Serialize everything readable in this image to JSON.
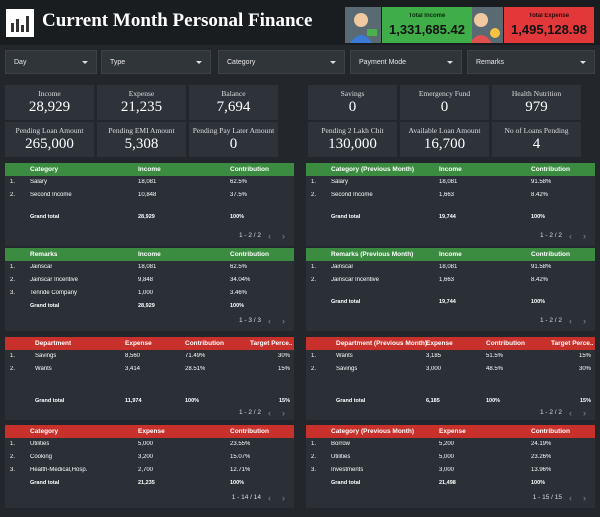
{
  "header": {
    "title": "Current Month Personal Finance",
    "kpis": [
      {
        "label": "Total Income",
        "value": "1,331,685.42",
        "color": "#3fae49"
      },
      {
        "label": "Total Expense",
        "value": "1,495,128.98",
        "color": "#e2383a"
      }
    ]
  },
  "filters": [
    "Day",
    "Type",
    "Category",
    "Payment Mode",
    "Remarks"
  ],
  "cards": [
    {
      "label": "Income",
      "value": "28,929"
    },
    {
      "label": "Expense",
      "value": "21,235"
    },
    {
      "label": "Balance",
      "value": "7,694"
    },
    {
      "label": "Savings",
      "value": "0"
    },
    {
      "label": "Emergency Fund",
      "value": "0"
    },
    {
      "label": "Health Nutrition",
      "value": "979"
    },
    {
      "label": "Pending Loan Amount",
      "value": "265,000"
    },
    {
      "label": "Pending EMI Amount",
      "value": "5,308"
    },
    {
      "label": "Pending Pay Later Amount",
      "value": "0"
    },
    {
      "label": "Pending 2 Lakh Chit",
      "value": "130,000"
    },
    {
      "label": "Available Loan Amount",
      "value": "16,700"
    },
    {
      "label": "No of Loans Pending",
      "value": "4"
    }
  ],
  "tables": [
    {
      "header_color": "#3b8c40",
      "columns": [
        "Category",
        "Income",
        "Contribution"
      ],
      "rows": [
        {
          "num": "1.",
          "cells": [
            "Salary",
            "18,081",
            "62.5%"
          ]
        },
        {
          "num": "2.",
          "cells": [
            "Second Income",
            "10,848",
            "37.5%"
          ]
        }
      ],
      "total": [
        "Grand total",
        "28,929",
        "100%"
      ],
      "pagination": "1 - 2 / 2"
    },
    {
      "header_color": "#3b8c40",
      "columns": [
        "Category (Previous Month)",
        "Income",
        "Contribution"
      ],
      "rows": [
        {
          "num": "1.",
          "cells": [
            "Salary",
            "18,081",
            "91.58%"
          ]
        },
        {
          "num": "2.",
          "cells": [
            "Second Income",
            "1,663",
            "8.42%"
          ]
        }
      ],
      "total": [
        "Grand total",
        "19,744",
        "100%"
      ],
      "pagination": "1 - 2 / 2"
    },
    {
      "header_color": "#3b8c40",
      "columns": [
        "Remarks",
        "Income",
        "Contribution"
      ],
      "rows": [
        {
          "num": "1.",
          "cells": [
            "Jainscar",
            "18,081",
            "62.5%"
          ]
        },
        {
          "num": "2.",
          "cells": [
            "Jainscar Incentive",
            "9,848",
            "34.04%"
          ]
        },
        {
          "num": "3.",
          "cells": [
            "Tenride Company",
            "1,000",
            "3.46%"
          ]
        }
      ],
      "total": [
        "Grand total",
        "28,929",
        "100%"
      ],
      "pagination": "1 - 3 / 3"
    },
    {
      "header_color": "#3b8c40",
      "columns": [
        "Remarks (Previous Month)",
        "Income",
        "Contribution"
      ],
      "rows": [
        {
          "num": "1.",
          "cells": [
            "Jainscar",
            "18,081",
            "91.58%"
          ]
        },
        {
          "num": "2.",
          "cells": [
            "Jainscar Incentive",
            "1,663",
            "8.42%"
          ]
        }
      ],
      "total": [
        "Grand total",
        "19,744",
        "100%"
      ],
      "pagination": "1 - 2 / 2"
    },
    {
      "header_color": "#c8302c",
      "columns": [
        "Department",
        "Expense",
        "Contribution",
        "Target Perce..."
      ],
      "rows": [
        {
          "num": "1.",
          "cells": [
            "Savings",
            "8,560",
            "71.49%",
            "30%"
          ]
        },
        {
          "num": "2.",
          "cells": [
            "Wants",
            "3,414",
            "28.51%",
            "15%"
          ]
        }
      ],
      "total": [
        "Grand total",
        "11,974",
        "100%",
        "15%"
      ],
      "pagination": "1 - 2 / 2"
    },
    {
      "header_color": "#c8302c",
      "columns": [
        "Department (Previous Month)",
        "Expense",
        "Contribution",
        "Target Perce..."
      ],
      "rows": [
        {
          "num": "1.",
          "cells": [
            "Wants",
            "3,185",
            "51.5%",
            "15%"
          ]
        },
        {
          "num": "2.",
          "cells": [
            "Savings",
            "3,000",
            "48.5%",
            "30%"
          ]
        }
      ],
      "total": [
        "Grand total",
        "6,185",
        "100%",
        "15%"
      ],
      "pagination": "1 - 2 / 2"
    },
    {
      "header_color": "#c8302c",
      "columns": [
        "Category",
        "Expense",
        "Contribution"
      ],
      "rows": [
        {
          "num": "1.",
          "cells": [
            "Utilities",
            "5,000",
            "23.55%"
          ]
        },
        {
          "num": "2.",
          "cells": [
            "Cooking",
            "3,200",
            "15.07%"
          ]
        },
        {
          "num": "3.",
          "cells": [
            "Health-Medical,Hosp.",
            "2,700",
            "12.71%"
          ]
        }
      ],
      "total": [
        "Grand total",
        "21,235",
        "100%"
      ],
      "pagination": "1 - 14 / 14"
    },
    {
      "header_color": "#c8302c",
      "columns": [
        "Category (Previous Month)",
        "Expense",
        "Contribution"
      ],
      "rows": [
        {
          "num": "1.",
          "cells": [
            "Borrow",
            "5,200",
            "24.19%"
          ]
        },
        {
          "num": "2.",
          "cells": [
            "Utilities",
            "5,000",
            "23.26%"
          ]
        },
        {
          "num": "3.",
          "cells": [
            "Investments",
            "3,000",
            "13.96%"
          ]
        }
      ],
      "total": [
        "Grand total",
        "21,498",
        "100%"
      ],
      "pagination": "1 - 15 / 15"
    }
  ]
}
